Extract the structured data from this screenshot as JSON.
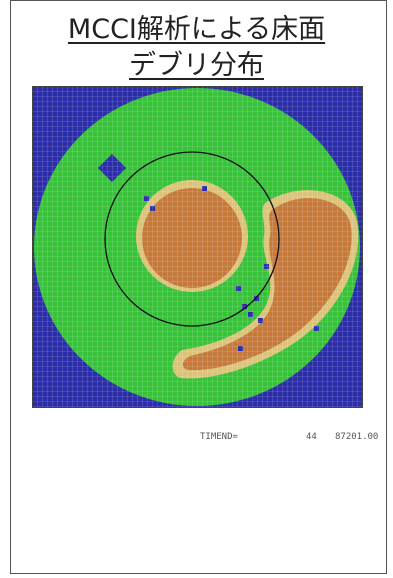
{
  "title": {
    "line1": "MCCI解析による床面",
    "line2": "デブリ分布"
  },
  "legend_colors": {
    "blue": "#2b2ea8",
    "green": "#38c23a",
    "brown": "#c57a3c",
    "tan": "#dcc37a"
  },
  "footer": {
    "label": "TIMEND=",
    "step": "44",
    "time": "87201.00"
  }
}
